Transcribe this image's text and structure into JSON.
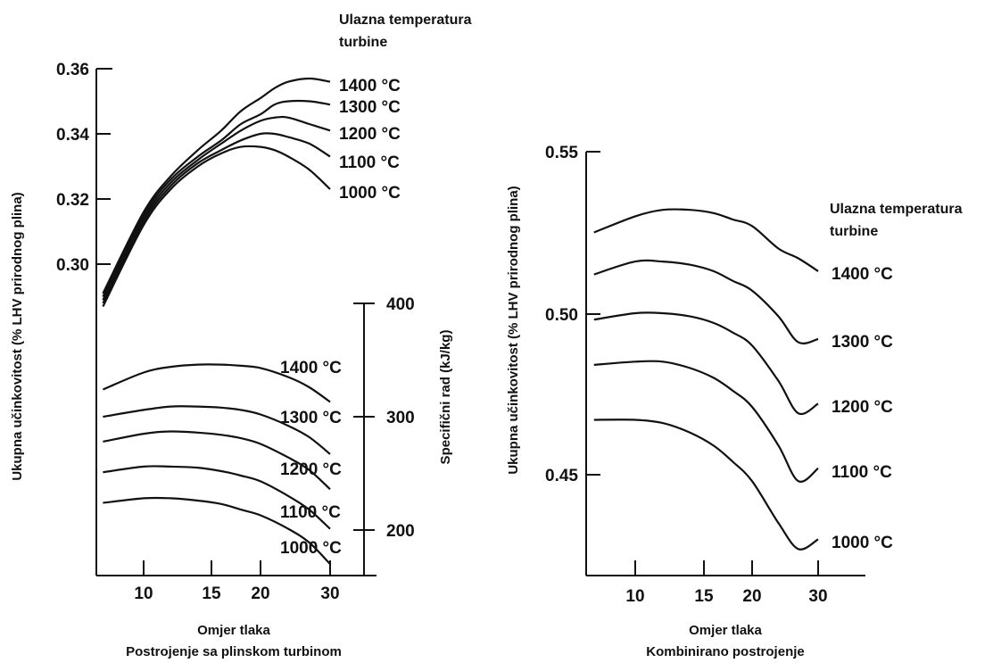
{
  "chart_data": [
    {
      "type": "line",
      "header": [
        "Ulazna temperatura",
        "turbine"
      ],
      "xlabel": "Omjer tlaka",
      "caption": "Postrojenje sa plinskom turbinom",
      "ylabel_left": "Ukupna učinkovitost (% LHV prirodnog plina)",
      "ylabel_right": "Specifični rad (kJ/kg)",
      "xticks": [
        "10",
        "15",
        "20",
        "30"
      ],
      "yticks_left": [
        "0.36",
        "0.34",
        "0.32",
        "0.30"
      ],
      "yticks_right": [
        "400",
        "300",
        "200"
      ],
      "ylim_left": [
        0.2875,
        0.36
      ],
      "ylim_right": [
        155,
        400
      ],
      "efficiency_series": [
        {
          "name": "1400 °C",
          "label": "1400 °C",
          "x": [
            7,
            10,
            12,
            14,
            16,
            18,
            20,
            22,
            24,
            27,
            30
          ],
          "y": [
            0.291,
            0.316,
            0.327,
            0.335,
            0.341,
            0.347,
            0.351,
            0.354,
            0.356,
            0.357,
            0.356
          ]
        },
        {
          "name": "1300 °C",
          "label": "1300 °C",
          "x": [
            7,
            10,
            12,
            14,
            16,
            18,
            20,
            22,
            24,
            27,
            30
          ],
          "y": [
            0.29,
            0.315,
            0.326,
            0.333,
            0.338,
            0.343,
            0.346,
            0.349,
            0.35,
            0.35,
            0.349
          ]
        },
        {
          "name": "1200 °C",
          "label": "1200 °C",
          "x": [
            7,
            10,
            12,
            14,
            16,
            18,
            20,
            22,
            24,
            27,
            30
          ],
          "y": [
            0.289,
            0.314,
            0.325,
            0.332,
            0.337,
            0.341,
            0.344,
            0.345,
            0.345,
            0.343,
            0.341
          ]
        },
        {
          "name": "1100 °C",
          "label": "1100 °C",
          "x": [
            7,
            10,
            12,
            14,
            16,
            18,
            20,
            22,
            24,
            27,
            30
          ],
          "y": [
            0.288,
            0.313,
            0.324,
            0.331,
            0.335,
            0.338,
            0.34,
            0.34,
            0.339,
            0.337,
            0.333
          ]
        },
        {
          "name": "1000 °C",
          "label": "1000 °C",
          "x": [
            7,
            10,
            12,
            14,
            16,
            18,
            20,
            22,
            24,
            27,
            30
          ],
          "y": [
            0.287,
            0.312,
            0.323,
            0.33,
            0.334,
            0.336,
            0.336,
            0.335,
            0.333,
            0.329,
            0.323
          ]
        }
      ],
      "work_series": [
        {
          "name": "1400 °C",
          "label": "1400 °C",
          "x": [
            7,
            10,
            12,
            14,
            16,
            18,
            20,
            24,
            27,
            30
          ],
          "y": [
            324,
            339,
            344,
            346,
            346,
            345,
            343,
            335,
            326,
            313
          ]
        },
        {
          "name": "1300 °C",
          "label": "1300 °C",
          "x": [
            7,
            10,
            12,
            14,
            16,
            18,
            20,
            24,
            27,
            30
          ],
          "y": [
            300,
            306,
            309,
            309,
            308,
            306,
            302,
            292,
            282,
            267
          ]
        },
        {
          "name": "1200 °C",
          "label": "1200 °C",
          "x": [
            7,
            10,
            12,
            14,
            16,
            18,
            20,
            24,
            27,
            30
          ],
          "y": [
            278,
            285,
            287,
            286,
            284,
            281,
            276,
            264,
            253,
            236
          ]
        },
        {
          "name": "1100 °C",
          "label": "1100 °C",
          "x": [
            7,
            10,
            12,
            14,
            16,
            18,
            20,
            24,
            27,
            30
          ],
          "y": [
            251,
            256,
            256,
            255,
            252,
            248,
            243,
            230,
            218,
            201
          ]
        },
        {
          "name": "1000 °C",
          "label": "1000 °C",
          "x": [
            7,
            10,
            12,
            14,
            16,
            18,
            20,
            24,
            27,
            30
          ],
          "y": [
            224,
            228,
            228,
            226,
            223,
            218,
            213,
            201,
            189,
            170
          ]
        }
      ],
      "work_label_positions": [
        {
          "x": 31,
          "y": 349
        },
        {
          "x": 31,
          "y": 301
        },
        {
          "x": 31,
          "y": 256
        },
        {
          "x": 31,
          "y": 219
        },
        {
          "x": 31,
          "y": 184
        }
      ]
    },
    {
      "type": "line",
      "header": [
        "Ulazna temperatura",
        "turbine"
      ],
      "xlabel": "Omjer tlaka",
      "caption": "Kombinirano postrojenje",
      "ylabel": "Ukupna učinkovitost (% LHV prirodnog plina)",
      "xticks": [
        "10",
        "15",
        "20",
        "30"
      ],
      "yticks": [
        "0.55",
        "0.50",
        "0.45"
      ],
      "ylim": [
        0.418,
        0.55
      ],
      "series": [
        {
          "name": "1400 °C",
          "label": "1400 °C",
          "x": [
            7,
            10,
            12,
            14,
            16,
            18,
            20,
            24,
            27,
            30
          ],
          "y": [
            0.525,
            0.53,
            0.532,
            0.532,
            0.531,
            0.529,
            0.527,
            0.52,
            0.517,
            0.513
          ]
        },
        {
          "name": "1300 °C",
          "label": "1300 °C",
          "x": [
            7,
            10,
            12,
            14,
            16,
            18,
            20,
            24,
            27,
            30
          ],
          "y": [
            0.512,
            0.516,
            0.516,
            0.515,
            0.513,
            0.51,
            0.507,
            0.499,
            0.491,
            0.492
          ]
        },
        {
          "name": "1200 °C",
          "label": "1200 °C",
          "x": [
            7,
            10,
            12,
            14,
            16,
            18,
            20,
            24,
            27,
            30
          ],
          "y": [
            0.498,
            0.5,
            0.5,
            0.499,
            0.497,
            0.494,
            0.49,
            0.479,
            0.469,
            0.472
          ]
        },
        {
          "name": "1100 °C",
          "label": "1100 °C",
          "x": [
            7,
            10,
            12,
            14,
            16,
            18,
            20,
            24,
            27,
            30
          ],
          "y": [
            0.484,
            0.485,
            0.485,
            0.483,
            0.48,
            0.476,
            0.471,
            0.459,
            0.448,
            0.452
          ]
        },
        {
          "name": "1000 °C",
          "label": "1000 °C",
          "x": [
            7,
            10,
            12,
            14,
            16,
            18,
            20,
            24,
            27,
            30
          ],
          "y": [
            0.467,
            0.467,
            0.466,
            0.463,
            0.459,
            0.454,
            0.448,
            0.435,
            0.427,
            0.43
          ]
        }
      ]
    }
  ]
}
